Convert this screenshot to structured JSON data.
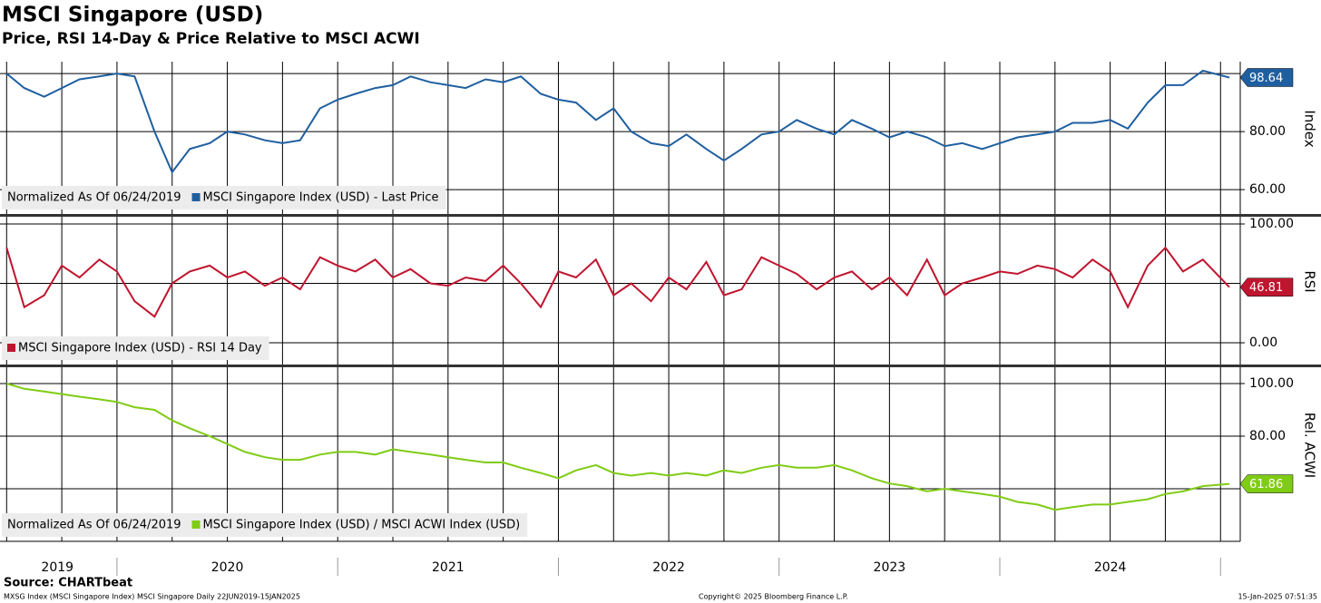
{
  "header": {
    "title": "MSCI Singapore (USD)",
    "subtitle": "Price, RSI 14-Day & Price Relative to MSCI ACWI"
  },
  "chart_data": [
    {
      "type": "line",
      "ylabel": "Index",
      "note": "Normalized As Of 06/24/2019",
      "x": [
        2019.5,
        2019.58,
        2019.67,
        2019.75,
        2019.83,
        2019.92,
        2020,
        2020.08,
        2020.17,
        2020.25,
        2020.33,
        2020.42,
        2020.5,
        2020.58,
        2020.67,
        2020.75,
        2020.83,
        2020.92,
        2021,
        2021.08,
        2021.17,
        2021.25,
        2021.33,
        2021.42,
        2021.5,
        2021.58,
        2021.67,
        2021.75,
        2021.83,
        2021.92,
        2022,
        2022.08,
        2022.17,
        2022.25,
        2022.33,
        2022.42,
        2022.5,
        2022.58,
        2022.67,
        2022.75,
        2022.83,
        2022.92,
        2023,
        2023.08,
        2023.17,
        2023.25,
        2023.33,
        2023.42,
        2023.5,
        2023.58,
        2023.67,
        2023.75,
        2023.83,
        2023.92,
        2024,
        2024.08,
        2024.17,
        2024.25,
        2024.33,
        2024.42,
        2024.5,
        2024.58,
        2024.67,
        2024.75,
        2024.83,
        2024.92,
        2025.04
      ],
      "series": [
        {
          "name": "MSCI Singapore Index (USD) - Last Price",
          "color": "#1f5fa0",
          "values": [
            100,
            95,
            92,
            95,
            98,
            99,
            100,
            99,
            80,
            66,
            74,
            76,
            80,
            79,
            77,
            76,
            77,
            88,
            91,
            93,
            95,
            96,
            99,
            97,
            96,
            95,
            98,
            97,
            99,
            93,
            91,
            90,
            84,
            88,
            80,
            76,
            75,
            79,
            74,
            70,
            74,
            79,
            80,
            84,
            81,
            79,
            84,
            81,
            78,
            80,
            78,
            75,
            76,
            74,
            76,
            78,
            79,
            80,
            83,
            83,
            84,
            81,
            90,
            96,
            96,
            101,
            98.64
          ]
        }
      ],
      "xlim": [
        2019.47,
        2025.04
      ],
      "ylim": [
        51.6,
        104.1
      ],
      "yticks": [
        {
          "value": 60,
          "label": "60.00"
        },
        {
          "value": 80,
          "label": "80.00"
        }
      ],
      "ygrid": [
        100
      ]
    },
    {
      "type": "line",
      "ylabel": "RSI",
      "x": [
        2019.5,
        2019.58,
        2019.67,
        2019.75,
        2019.83,
        2019.92,
        2020,
        2020.08,
        2020.17,
        2020.25,
        2020.33,
        2020.42,
        2020.5,
        2020.58,
        2020.67,
        2020.75,
        2020.83,
        2020.92,
        2021,
        2021.08,
        2021.17,
        2021.25,
        2021.33,
        2021.42,
        2021.5,
        2021.58,
        2021.67,
        2021.75,
        2021.83,
        2021.92,
        2022,
        2022.08,
        2022.17,
        2022.25,
        2022.33,
        2022.42,
        2022.5,
        2022.58,
        2022.67,
        2022.75,
        2022.83,
        2022.92,
        2023,
        2023.08,
        2023.17,
        2023.25,
        2023.33,
        2023.42,
        2023.5,
        2023.58,
        2023.67,
        2023.75,
        2023.83,
        2023.92,
        2024,
        2024.08,
        2024.17,
        2024.25,
        2024.33,
        2024.42,
        2024.5,
        2024.58,
        2024.67,
        2024.75,
        2024.83,
        2024.92,
        2025.04
      ],
      "series": [
        {
          "name": "MSCI Singapore Index (USD) - RSI 14 Day",
          "color": "#c0152f",
          "values": [
            80,
            30,
            40,
            65,
            55,
            70,
            60,
            35,
            22,
            50,
            60,
            65,
            55,
            60,
            48,
            55,
            45,
            72,
            65,
            60,
            70,
            55,
            62,
            50,
            48,
            55,
            52,
            65,
            50,
            30,
            60,
            55,
            70,
            40,
            50,
            35,
            55,
            45,
            68,
            40,
            45,
            72,
            65,
            58,
            45,
            55,
            60,
            45,
            55,
            40,
            70,
            40,
            50,
            55,
            60,
            58,
            65,
            62,
            55,
            70,
            60,
            30,
            65,
            80,
            60,
            70,
            46.81
          ]
        }
      ],
      "xlim": [
        2019.47,
        2025.04
      ],
      "ylim": [
        -18.3,
        106.1
      ],
      "yticks": [
        {
          "value": 0,
          "label": "0.00"
        },
        {
          "value": 100,
          "label": "100.00"
        }
      ],
      "ygrid": [
        50
      ]
    },
    {
      "type": "line",
      "ylabel": "Rel. ACWI",
      "note": "Normalized As Of 06/24/2019",
      "x": [
        2019.5,
        2019.58,
        2019.67,
        2019.75,
        2019.83,
        2019.92,
        2020,
        2020.08,
        2020.17,
        2020.25,
        2020.33,
        2020.42,
        2020.5,
        2020.58,
        2020.67,
        2020.75,
        2020.83,
        2020.92,
        2021,
        2021.08,
        2021.17,
        2021.25,
        2021.33,
        2021.42,
        2021.5,
        2021.58,
        2021.67,
        2021.75,
        2021.83,
        2021.92,
        2022,
        2022.08,
        2022.17,
        2022.25,
        2022.33,
        2022.42,
        2022.5,
        2022.58,
        2022.67,
        2022.75,
        2022.83,
        2022.92,
        2023,
        2023.08,
        2023.17,
        2023.25,
        2023.33,
        2023.42,
        2023.5,
        2023.58,
        2023.67,
        2023.75,
        2023.83,
        2023.92,
        2024,
        2024.08,
        2024.17,
        2024.25,
        2024.33,
        2024.42,
        2024.5,
        2024.58,
        2024.67,
        2024.75,
        2024.83,
        2024.92,
        2025.04
      ],
      "series": [
        {
          "name": "MSCI Singapore Index (USD) / MSCI ACWI Index (USD)",
          "color": "#7fcc14",
          "values": [
            100,
            98,
            97,
            96,
            95,
            94,
            93,
            91,
            90,
            86,
            83,
            80,
            77,
            74,
            72,
            71,
            71,
            73,
            74,
            74,
            73,
            75,
            74,
            73,
            72,
            71,
            70,
            70,
            68,
            66,
            64,
            67,
            69,
            66,
            65,
            66,
            65,
            66,
            65,
            67,
            66,
            68,
            69,
            68,
            68,
            69,
            67,
            64,
            62,
            61,
            59,
            60,
            59,
            58,
            57,
            55,
            54,
            52,
            53,
            54,
            54,
            55,
            56,
            58,
            59,
            61,
            61.86
          ]
        }
      ],
      "xlim": [
        2019.47,
        2025.04
      ],
      "ylim": [
        40,
        106.2
      ],
      "yticks": [
        {
          "value": 80,
          "label": "80.00"
        },
        {
          "value": 100,
          "label": "100.00"
        }
      ],
      "ygrid": [
        60
      ],
      "xticks": [
        {
          "value": 2019.73,
          "label": "2019"
        },
        {
          "value": 2020.5,
          "label": "2020"
        },
        {
          "value": 2021.5,
          "label": "2021"
        },
        {
          "value": 2022.5,
          "label": "2022"
        },
        {
          "value": 2023.5,
          "label": "2023"
        },
        {
          "value": 2024.5,
          "label": "2024"
        }
      ]
    }
  ],
  "footer": {
    "source": "Source: CHARTbeat",
    "ticker": "MXSG Index (MSCI Singapore Index) MSCI Singapore  Daily 22JUN2019-15JAN2025",
    "copyright": "Copyright© 2025 Bloomberg Finance L.P.",
    "timestamp": "15-Jan-2025 07:51:35"
  }
}
